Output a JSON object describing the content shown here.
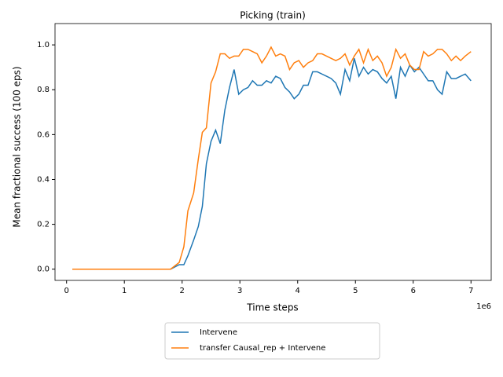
{
  "chart_data": {
    "type": "line",
    "title": "Picking (train)",
    "x_label": "Time steps",
    "y_label": "Mean fractional success (100 eps)",
    "x_offset_label": "1e6",
    "x": [
      0.1,
      0.5,
      1.0,
      1.5,
      1.7,
      1.8,
      1.95,
      2.03,
      2.1,
      2.2,
      2.28,
      2.35,
      2.42,
      2.5,
      2.58,
      2.66,
      2.74,
      2.82,
      2.9,
      2.98,
      3.06,
      3.14,
      3.22,
      3.3,
      3.38,
      3.46,
      3.54,
      3.62,
      3.7,
      3.78,
      3.86,
      3.94,
      4.02,
      4.1,
      4.18,
      4.26,
      4.34,
      4.42,
      4.5,
      4.58,
      4.66,
      4.74,
      4.82,
      4.9,
      4.98,
      5.06,
      5.14,
      5.22,
      5.3,
      5.38,
      5.46,
      5.54,
      5.62,
      5.7,
      5.78,
      5.86,
      5.94,
      6.02,
      6.1,
      6.18,
      6.26,
      6.34,
      6.42,
      6.5,
      6.58,
      6.66,
      6.74,
      6.82,
      6.9,
      7.0
    ],
    "series": [
      {
        "name": "Intervene",
        "color": "#1f77b4",
        "values": [
          0,
          0,
          0,
          0,
          0,
          0,
          0.02,
          0.02,
          0.06,
          0.13,
          0.19,
          0.28,
          0.47,
          0.57,
          0.62,
          0.56,
          0.71,
          0.81,
          0.89,
          0.78,
          0.8,
          0.81,
          0.84,
          0.82,
          0.82,
          0.84,
          0.83,
          0.86,
          0.85,
          0.81,
          0.79,
          0.76,
          0.78,
          0.82,
          0.82,
          0.88,
          0.88,
          0.87,
          0.86,
          0.85,
          0.83,
          0.78,
          0.89,
          0.84,
          0.94,
          0.86,
          0.9,
          0.87,
          0.89,
          0.88,
          0.85,
          0.83,
          0.86,
          0.76,
          0.9,
          0.86,
          0.91,
          0.88,
          0.9,
          0.87,
          0.84,
          0.84,
          0.8,
          0.78,
          0.88,
          0.85,
          0.85,
          0.86,
          0.87,
          0.84
        ]
      },
      {
        "name": "transfer Causal_rep + Intervene",
        "color": "#ff7f0e",
        "values": [
          0,
          0,
          0,
          0,
          0,
          0,
          0.03,
          0.1,
          0.26,
          0.34,
          0.49,
          0.61,
          0.63,
          0.83,
          0.88,
          0.96,
          0.96,
          0.94,
          0.95,
          0.95,
          0.98,
          0.98,
          0.97,
          0.96,
          0.92,
          0.95,
          0.99,
          0.95,
          0.96,
          0.95,
          0.89,
          0.92,
          0.93,
          0.9,
          0.92,
          0.93,
          0.96,
          0.96,
          0.95,
          0.94,
          0.93,
          0.94,
          0.96,
          0.91,
          0.95,
          0.98,
          0.92,
          0.98,
          0.93,
          0.95,
          0.92,
          0.86,
          0.9,
          0.98,
          0.94,
          0.96,
          0.91,
          0.89,
          0.89,
          0.97,
          0.95,
          0.96,
          0.98,
          0.98,
          0.96,
          0.93,
          0.95,
          0.93,
          0.95,
          0.97
        ]
      }
    ],
    "xlim": [
      -0.2,
      7.35
    ],
    "ylim": [
      -0.05,
      1.095
    ],
    "xticks": [
      0,
      1,
      2,
      3,
      4,
      5,
      6,
      7
    ],
    "yticks": [
      {
        "value": 0,
        "label": "0.0"
      },
      {
        "value": 0.2,
        "label": "0.2"
      },
      {
        "value": 0.4,
        "label": "0.4"
      },
      {
        "value": 0.6,
        "label": "0.6"
      },
      {
        "value": 0.8,
        "label": "0.8"
      },
      {
        "value": 1,
        "label": "1.0"
      }
    ],
    "legend": "below"
  }
}
